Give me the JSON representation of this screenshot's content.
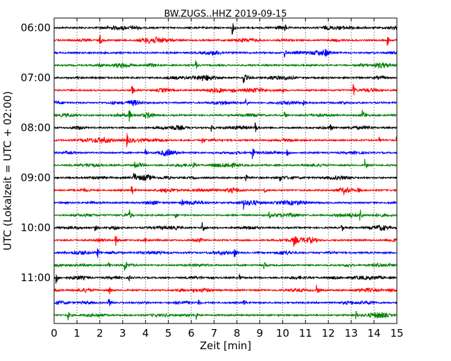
{
  "chart_data": {
    "type": "line",
    "title": "BW.ZUGS..HHZ 2019-09-15",
    "xlabel": "Zeit  [min]",
    "ylabel": "UTC (Lokalzeit = UTC + 02:00)",
    "xlim": [
      0,
      15
    ],
    "x_ticks": [
      0,
      1,
      2,
      3,
      4,
      5,
      6,
      7,
      8,
      9,
      10,
      11,
      12,
      13,
      14,
      15
    ],
    "y_tick_labels": [
      "06:00",
      "07:00",
      "08:00",
      "09:00",
      "10:00",
      "11:00"
    ],
    "grid": "vertical dotted",
    "colors": [
      "#000000",
      "#ff0000",
      "#0000ff",
      "#008000"
    ],
    "series": [
      {
        "start": "06:00",
        "color": "#000000",
        "events": [
          [
            7.8,
            1.0
          ],
          [
            10.1,
            0.6
          ],
          [
            3.0,
            0.4
          ]
        ]
      },
      {
        "start": "06:15",
        "color": "#ff0000",
        "events": [
          [
            2.0,
            1.0
          ],
          [
            14.6,
            0.9
          ]
        ]
      },
      {
        "start": "06:30",
        "color": "#0000ff",
        "events": [
          [
            10.1,
            0.7
          ],
          [
            11.9,
            0.4
          ]
        ]
      },
      {
        "start": "06:45",
        "color": "#008000",
        "events": [
          [
            6.2,
            0.9
          ]
        ]
      },
      {
        "start": "07:00",
        "color": "#000000",
        "events": [
          [
            8.3,
            1.0
          ],
          [
            1.0,
            0.3
          ]
        ]
      },
      {
        "start": "07:15",
        "color": "#ff0000",
        "events": [
          [
            3.4,
            1.0
          ],
          [
            7.8,
            0.8
          ],
          [
            13.1,
            1.0
          ],
          [
            10.0,
            0.4
          ]
        ]
      },
      {
        "start": "07:30",
        "color": "#0000ff",
        "events": [
          [
            8.4,
            0.7
          ],
          [
            10.9,
            0.4
          ]
        ]
      },
      {
        "start": "07:45",
        "color": "#008000",
        "events": [
          [
            3.3,
            0.9
          ],
          [
            10.1,
            0.6
          ],
          [
            13.5,
            0.9
          ]
        ]
      },
      {
        "start": "08:00",
        "color": "#000000",
        "events": [
          [
            6.9,
            0.7
          ],
          [
            8.8,
            1.0
          ],
          [
            12.1,
            0.4
          ]
        ]
      },
      {
        "start": "08:15",
        "color": "#ff0000",
        "events": [
          [
            3.2,
            0.9
          ],
          [
            6.5,
            0.5
          ],
          [
            14.2,
            0.8
          ],
          [
            15.0,
            0.5
          ]
        ]
      },
      {
        "start": "08:30",
        "color": "#0000ff",
        "events": [
          [
            8.7,
            1.0
          ],
          [
            10.2,
            0.7
          ],
          [
            4.0,
            0.5
          ]
        ]
      },
      {
        "start": "08:45",
        "color": "#008000",
        "events": [
          [
            3.5,
            0.8
          ],
          [
            6.1,
            0.4
          ],
          [
            13.6,
            1.0
          ]
        ]
      },
      {
        "start": "09:00",
        "color": "#000000",
        "events": [
          [
            3.5,
            1.0
          ],
          [
            8.4,
            0.9
          ],
          [
            9.9,
            0.5
          ]
        ]
      },
      {
        "start": "09:15",
        "color": "#ff0000",
        "events": [
          [
            3.4,
            1.0
          ],
          [
            12.7,
            0.6
          ],
          [
            13.3,
            0.7
          ],
          [
            9.2,
            0.4
          ]
        ]
      },
      {
        "start": "09:30",
        "color": "#0000ff",
        "events": [
          [
            8.3,
            1.0
          ],
          [
            5.6,
            0.4
          ]
        ]
      },
      {
        "start": "09:45",
        "color": "#008000",
        "events": [
          [
            3.3,
            0.8
          ],
          [
            5.3,
            0.6
          ],
          [
            9.4,
            0.6
          ],
          [
            13.4,
            1.0
          ]
        ]
      },
      {
        "start": "10:00",
        "color": "#000000",
        "events": [
          [
            6.5,
            1.0
          ],
          [
            1.8,
            0.5
          ],
          [
            12.6,
            0.6
          ]
        ]
      },
      {
        "start": "10:15",
        "color": "#ff0000",
        "events": [
          [
            2.7,
            1.0
          ],
          [
            10.5,
            0.8
          ],
          [
            4.0,
            0.4
          ]
        ]
      },
      {
        "start": "10:30",
        "color": "#0000ff",
        "events": [
          [
            1.9,
            0.9
          ],
          [
            7.9,
            0.8
          ]
        ]
      },
      {
        "start": "10:45",
        "color": "#008000",
        "events": [
          [
            3.1,
            1.0
          ],
          [
            9.2,
            0.7
          ],
          [
            2.4,
            0.5
          ]
        ]
      },
      {
        "start": "11:00",
        "color": "#000000",
        "events": [
          [
            0.1,
            1.0
          ],
          [
            8.1,
            0.6
          ],
          [
            3.3,
            0.4
          ]
        ]
      },
      {
        "start": "11:15",
        "color": "#ff0000",
        "events": [
          [
            2.4,
            0.9
          ],
          [
            11.5,
            0.9
          ],
          [
            6.1,
            0.4
          ]
        ]
      },
      {
        "start": "11:30",
        "color": "#0000ff",
        "events": [
          [
            2.4,
            0.8
          ],
          [
            8.3,
            0.7
          ],
          [
            6.3,
            0.5
          ]
        ]
      },
      {
        "start": "11:45",
        "color": "#008000",
        "events": [
          [
            0.6,
            1.0
          ],
          [
            6.2,
            0.9
          ],
          [
            13.2,
            0.8
          ]
        ]
      }
    ]
  }
}
